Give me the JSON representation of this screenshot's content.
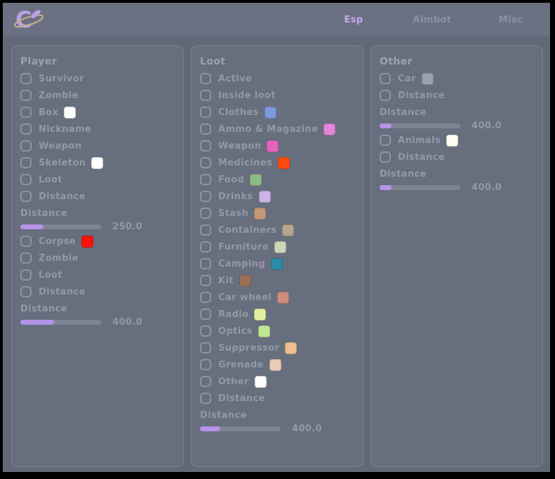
{
  "header": {
    "logo_icon": "planet-c-logo",
    "tabs": [
      {
        "label": "Esp",
        "active": true
      },
      {
        "label": "Aimbot",
        "active": false
      },
      {
        "label": "Misc",
        "active": false
      }
    ]
  },
  "colors": {
    "accent_purple": "#b493e8",
    "tab_active": "#c7a9f2",
    "header_bg": "#6b7183",
    "main_bg": "#626878",
    "panel_bg": "#676e7e",
    "label_text": "#9298a6"
  },
  "panels": [
    {
      "title": "Player",
      "items": [
        {
          "type": "checkbox",
          "label": "Survivor",
          "checked": false
        },
        {
          "type": "checkbox",
          "label": "Zombie",
          "checked": false
        },
        {
          "type": "checkbox",
          "label": "Box",
          "checked": false,
          "swatch": "#ffffff"
        },
        {
          "type": "checkbox",
          "label": "Nickname",
          "checked": false
        },
        {
          "type": "checkbox",
          "label": "Weapon",
          "checked": false
        },
        {
          "type": "checkbox",
          "label": "Skeleton",
          "checked": false,
          "swatch": "#ffffff"
        },
        {
          "type": "checkbox",
          "label": "Loot",
          "checked": false
        },
        {
          "type": "checkbox",
          "label": "Distance",
          "checked": false
        },
        {
          "type": "slider",
          "label": "Distance",
          "value": "250.0",
          "fill_pct": 29
        },
        {
          "type": "checkbox",
          "label": "Corpse",
          "checked": false,
          "swatch": "#fb1208"
        },
        {
          "type": "checkbox",
          "label": "Zombie",
          "checked": false
        },
        {
          "type": "checkbox",
          "label": "Loot",
          "checked": false
        },
        {
          "type": "checkbox",
          "label": "Distance",
          "checked": false
        },
        {
          "type": "slider",
          "label": "Distance",
          "value": "400.0",
          "fill_pct": 42
        }
      ]
    },
    {
      "title": "Loot",
      "items": [
        {
          "type": "checkbox",
          "label": "Active",
          "checked": false
        },
        {
          "type": "checkbox",
          "label": "Inside loot",
          "checked": false
        },
        {
          "type": "checkbox",
          "label": "Clothes",
          "checked": false,
          "swatch": "#7d98dc"
        },
        {
          "type": "checkbox",
          "label": "Ammo & Magazine",
          "checked": false,
          "swatch": "#e385d9"
        },
        {
          "type": "checkbox",
          "label": "Weapon",
          "checked": false,
          "swatch": "#e564b9"
        },
        {
          "type": "checkbox",
          "label": "Medicines",
          "checked": false,
          "swatch": "#ff4a0e"
        },
        {
          "type": "checkbox",
          "label": "Food",
          "checked": false,
          "swatch": "#8cbb85"
        },
        {
          "type": "checkbox",
          "label": "Drinks",
          "checked": false,
          "swatch": "#cbb3e9"
        },
        {
          "type": "checkbox",
          "label": "Stash",
          "checked": false,
          "swatch": "#c29878"
        },
        {
          "type": "checkbox",
          "label": "Containers",
          "checked": false,
          "swatch": "#b2a78e"
        },
        {
          "type": "checkbox",
          "label": "Furniture",
          "checked": false,
          "swatch": "#cdd5b6"
        },
        {
          "type": "checkbox",
          "label": "Camping",
          "checked": false,
          "swatch": "#2d8aa9"
        },
        {
          "type": "checkbox",
          "label": "Kit",
          "checked": false,
          "swatch": "#9a7052"
        },
        {
          "type": "checkbox",
          "label": "Car wheel",
          "checked": false,
          "swatch": "#c98f7c"
        },
        {
          "type": "checkbox",
          "label": "Radio",
          "checked": false,
          "swatch": "#e3eda1"
        },
        {
          "type": "checkbox",
          "label": "Optics",
          "checked": false,
          "swatch": "#bfe794"
        },
        {
          "type": "checkbox",
          "label": "Suppressor",
          "checked": false,
          "swatch": "#edbf8d"
        },
        {
          "type": "checkbox",
          "label": "Grenade",
          "checked": false,
          "swatch": "#e9cab4"
        },
        {
          "type": "checkbox",
          "label": "Other",
          "checked": false,
          "swatch": "#ffffff"
        },
        {
          "type": "checkbox",
          "label": "Distance",
          "checked": false
        },
        {
          "type": "slider",
          "label": "Distance",
          "value": "400.0",
          "fill_pct": 25
        }
      ]
    },
    {
      "title": "Other",
      "items": [
        {
          "type": "checkbox",
          "label": "Car",
          "checked": false,
          "swatch": "#9aa2ae"
        },
        {
          "type": "checkbox",
          "label": "Distance",
          "checked": false
        },
        {
          "type": "slider",
          "label": "Distance",
          "value": "400.0",
          "fill_pct": 15
        },
        {
          "type": "checkbox",
          "label": "Animals",
          "checked": false,
          "swatch": "#fdfdf2"
        },
        {
          "type": "checkbox",
          "label": "Distance",
          "checked": false
        },
        {
          "type": "slider",
          "label": "Distance",
          "value": "400.0",
          "fill_pct": 15
        }
      ]
    }
  ]
}
